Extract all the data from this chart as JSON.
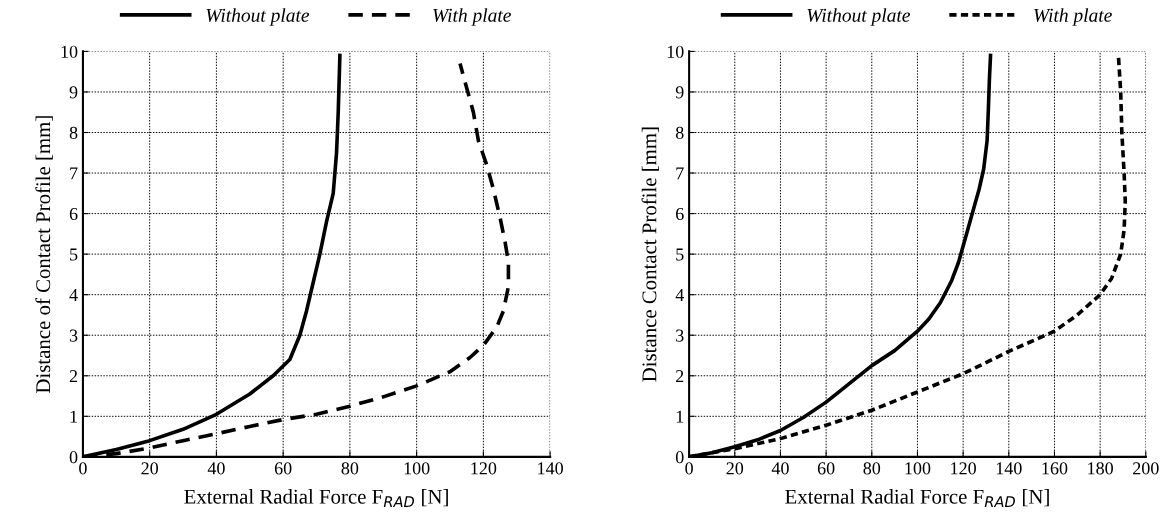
{
  "chart_data": [
    {
      "type": "line",
      "xlabel": "External Radial Force F$_{RAD}$ [N]",
      "ylabel": "Distance of Contact Profile [mm]",
      "xlim": [
        0,
        140
      ],
      "xticks": [
        0,
        20,
        40,
        60,
        80,
        100,
        120,
        140
      ],
      "ylim": [
        0,
        10
      ],
      "yticks": [
        0,
        1,
        2,
        3,
        4,
        5,
        6,
        7,
        8,
        9,
        10
      ],
      "grid": true,
      "legend": "top",
      "marker": "none",
      "series": [
        {
          "name": "Without plate",
          "color": "#000000",
          "line_style": "solid",
          "x": [
            0,
            10,
            20,
            30,
            40,
            50,
            57,
            62,
            65,
            67,
            69,
            71,
            73,
            75,
            76,
            76.5,
            77
          ],
          "values": [
            0,
            0.18,
            0.4,
            0.68,
            1.05,
            1.55,
            2.0,
            2.4,
            3.0,
            3.6,
            4.3,
            5.0,
            5.8,
            6.5,
            7.5,
            8.5,
            9.9
          ]
        },
        {
          "name": "With plate",
          "color": "#000000",
          "line_style": "dashed",
          "x": [
            0,
            10,
            20,
            30,
            40,
            50,
            60,
            70,
            80,
            90,
            100,
            110,
            116,
            120,
            124,
            126,
            127.5,
            127.5,
            126.5,
            125,
            123,
            121,
            118.5,
            117,
            115,
            113
          ],
          "values": [
            0,
            0.08,
            0.22,
            0.4,
            0.57,
            0.75,
            0.92,
            1.05,
            1.25,
            1.48,
            1.75,
            2.1,
            2.45,
            2.75,
            3.2,
            3.6,
            4.2,
            4.8,
            5.3,
            5.9,
            6.6,
            7.2,
            7.8,
            8.5,
            9.1,
            9.7
          ]
        }
      ]
    },
    {
      "type": "line",
      "xlabel": "External Radial Force F$_{RAD}$ [N]",
      "ylabel": "Distance Contact Profile [mm]",
      "xlim": [
        0,
        200
      ],
      "xticks": [
        0,
        20,
        40,
        60,
        80,
        100,
        120,
        140,
        160,
        180,
        200
      ],
      "ylim": [
        0,
        10
      ],
      "yticks": [
        0,
        1,
        2,
        3,
        4,
        5,
        6,
        7,
        8,
        9,
        10
      ],
      "grid": true,
      "legend": "top",
      "marker": "none",
      "series": [
        {
          "name": "Without plate",
          "color": "#000000",
          "line_style": "solid",
          "x": [
            0,
            10,
            20,
            30,
            40,
            50,
            60,
            70,
            80,
            90,
            100,
            105,
            110,
            115,
            118,
            121,
            124,
            127,
            129,
            130.5,
            131,
            131.5,
            132
          ],
          "values": [
            0,
            0.1,
            0.25,
            0.42,
            0.65,
            0.97,
            1.35,
            1.8,
            2.25,
            2.62,
            3.1,
            3.4,
            3.8,
            4.35,
            4.8,
            5.4,
            6.0,
            6.6,
            7.1,
            7.8,
            8.5,
            9.3,
            9.9
          ]
        },
        {
          "name": "With plate",
          "color": "#000000",
          "line_style": "dotted",
          "x": [
            0,
            20,
            40,
            60,
            80,
            100,
            120,
            140,
            160,
            170,
            180,
            185,
            189,
            190.5,
            191,
            190.5,
            189.5,
            189,
            188
          ],
          "values": [
            0,
            0.2,
            0.45,
            0.78,
            1.15,
            1.6,
            2.05,
            2.6,
            3.1,
            3.5,
            4.0,
            4.4,
            5.0,
            5.6,
            6.3,
            7.0,
            8.0,
            9.0,
            9.9
          ]
        }
      ]
    }
  ]
}
